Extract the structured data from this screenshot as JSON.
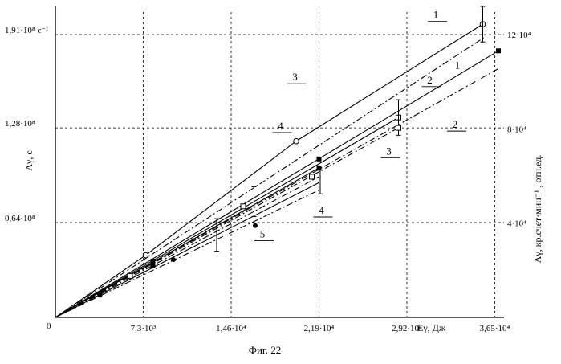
{
  "chart_data": {
    "type": "line",
    "caption": "Фиг. 22",
    "origin_label": "0",
    "x_axis": {
      "label": "Eγ, Дж",
      "ticks": [
        {
          "value": 7300,
          "label": "7,3·10³"
        },
        {
          "value": 14600,
          "label": "1,46·10⁴"
        },
        {
          "value": 21900,
          "label": "2,19·10⁴"
        },
        {
          "value": 29200,
          "label": "2,92·10⁴"
        },
        {
          "value": 36500,
          "label": "3,65·10⁴"
        }
      ],
      "range": [
        0,
        37000
      ]
    },
    "y_left": {
      "label": "Aγ, c",
      "ticks": [
        {
          "value": 64000000,
          "label": "0,64·10⁸"
        },
        {
          "value": 128000000,
          "label": "1,28·10⁸"
        },
        {
          "value": 191000000,
          "label": "1,91·10⁸ c⁻¹"
        }
      ],
      "range": [
        0,
        210000000
      ]
    },
    "y_right": {
      "label": "Aγ, кр.счет·мин⁻¹ , отн.ед.",
      "ticks": [
        {
          "value": 40000,
          "label": "4·10⁴"
        },
        {
          "value": 80000,
          "label": "8·10⁴"
        },
        {
          "value": 120000,
          "label": "12·10⁴"
        }
      ]
    },
    "grid": true,
    "series": [
      {
        "name": "1",
        "style": "solid",
        "x": [
          0,
          7500,
          20000,
          35500
        ],
        "y": [
          0,
          42000000,
          119000000,
          198000000
        ],
        "marker": "open-circle",
        "points": [
          [
            7500,
            42000000
          ],
          [
            20000,
            119000000
          ],
          [
            35500,
            198000000
          ]
        ],
        "errors": [
          [
            35500,
            12000000
          ]
        ]
      },
      {
        "name": "1",
        "style": "dashdot",
        "x": [
          0,
          35800
        ],
        "y": [
          0,
          190000000
        ]
      },
      {
        "name": "2",
        "style": "solid",
        "x": [
          0,
          36800
        ],
        "y": [
          0,
          180000000
        ],
        "marker": "filled-square",
        "points": [
          [
            8100,
            38000000
          ],
          [
            21900,
            107000000
          ],
          [
            36800,
            180000000
          ]
        ]
      },
      {
        "name": "2",
        "style": "dashdot",
        "x": [
          0,
          36800
        ],
        "y": [
          0,
          168000000
        ]
      },
      {
        "name": "3",
        "style": "solid",
        "x": [
          0,
          28500
        ],
        "y": [
          0,
          135000000
        ],
        "marker": "open-square",
        "points": [
          [
            6200,
            28000000
          ],
          [
            15600,
            75000000
          ],
          [
            21300,
            95000000
          ],
          [
            28500,
            135000000
          ]
        ],
        "errors": [
          [
            28500,
            12000000
          ],
          [
            16500,
            10000000
          ]
        ]
      },
      {
        "name": "3",
        "style": "dashdot",
        "x": [
          0,
          28500
        ],
        "y": [
          0,
          128000000
        ],
        "marker": "open-square",
        "points": [
          [
            28500,
            128000000
          ]
        ]
      },
      {
        "name": "4",
        "style": "solid",
        "x": [
          0,
          21900
        ],
        "y": [
          0,
          101000000
        ],
        "marker": "filled-square",
        "points": [
          [
            21900,
            101000000
          ],
          [
            8100,
            35000000
          ]
        ]
      },
      {
        "name": "4",
        "style": "dashdot",
        "x": [
          0,
          21900
        ],
        "y": [
          0,
          95000000
        ]
      },
      {
        "name": "5",
        "style": "solid",
        "x": [
          0,
          21900
        ],
        "y": [
          0,
          91000000
        ],
        "marker": "filled-circle",
        "points": [
          [
            3700,
            15000000
          ],
          [
            9800,
            39000000
          ],
          [
            16600,
            62000000
          ]
        ],
        "errors": [
          [
            13400,
            11000000
          ],
          [
            22000,
            8000000
          ]
        ]
      },
      {
        "name": "5",
        "style": "dashdot",
        "x": [
          0,
          21900
        ],
        "y": [
          0,
          86000000
        ]
      }
    ],
    "labels": [
      {
        "text": "1",
        "x": 31600,
        "y": 202000000
      },
      {
        "text": "1",
        "x": 33400,
        "y": 168000000
      },
      {
        "text": "2",
        "x": 31100,
        "y": 158000000
      },
      {
        "text": "2",
        "x": 33200,
        "y": 128000000
      },
      {
        "text": "3",
        "x": 19900,
        "y": 160000000
      },
      {
        "text": "3",
        "x": 27700,
        "y": 110000000
      },
      {
        "text": "4",
        "x": 18700,
        "y": 127000000
      },
      {
        "text": "4",
        "x": 22100,
        "y": 70000000
      },
      {
        "text": "5",
        "x": 17200,
        "y": 54000000
      }
    ]
  }
}
